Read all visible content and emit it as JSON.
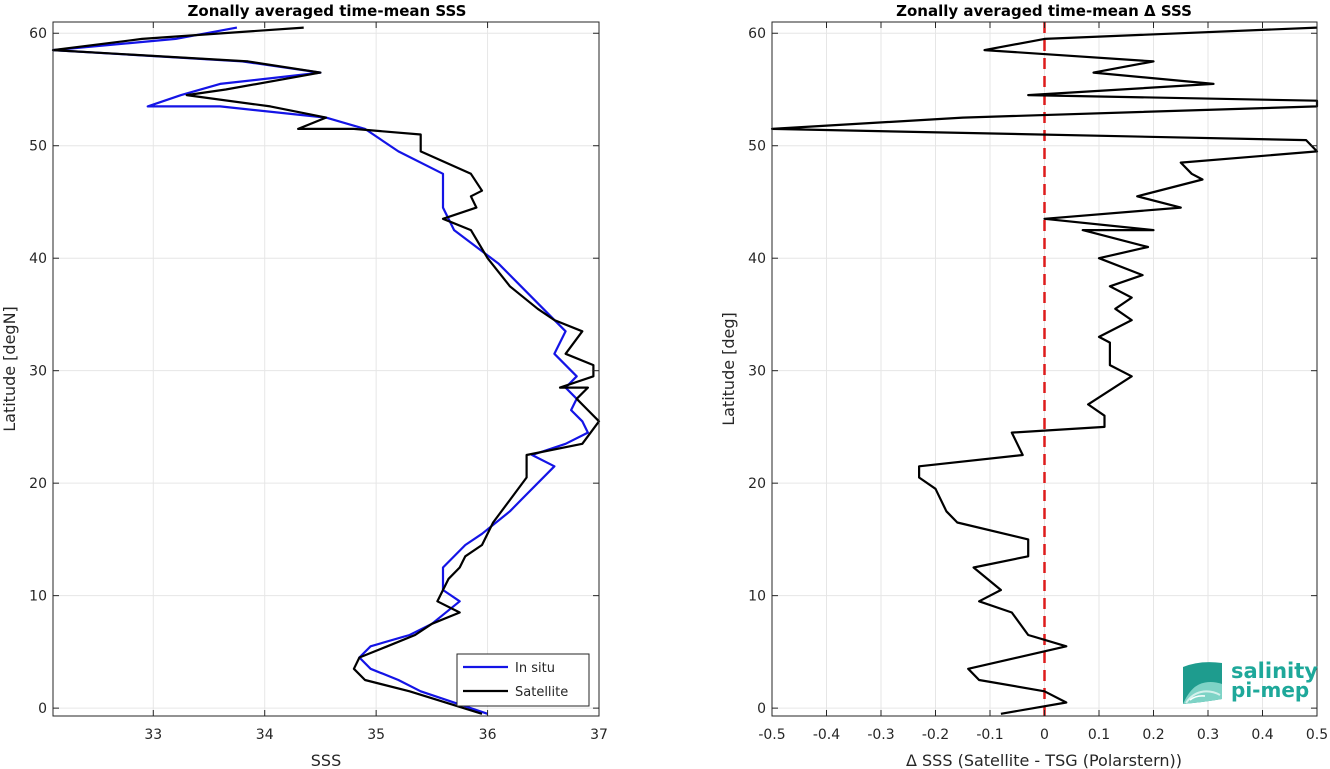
{
  "colors": {
    "in_situ": "#1414e6",
    "satellite": "#000000",
    "zero_line": "#dd1c1c",
    "logo_teal": "#1ea89a"
  },
  "logo": {
    "line1": "salinity",
    "line2": "pi-mep",
    "icon": "salinity-wave-logo-icon"
  },
  "chart_data": [
    {
      "type": "line",
      "title": "Zonally averaged time-mean SSS",
      "xlabel": "SSS",
      "ylabel": "Latitude [degN]",
      "xlim": [
        32.1,
        37
      ],
      "ylim": [
        -0.7,
        61
      ],
      "xticks": [
        "33",
        "34",
        "35",
        "36",
        "37"
      ],
      "yticks": [
        "0",
        "10",
        "20",
        "30",
        "40",
        "50",
        "60"
      ],
      "grid": true,
      "legend": {
        "placement": "bottom-right",
        "entries": [
          "In situ",
          "Satellite"
        ]
      },
      "series": [
        {
          "name": "In situ",
          "color_key": "in_situ",
          "points": [
            [
              36.0,
              -0.5
            ],
            [
              35.4,
              1.5
            ],
            [
              35.2,
              2.5
            ],
            [
              34.95,
              3.5
            ],
            [
              34.85,
              4.5
            ],
            [
              34.95,
              5.5
            ],
            [
              35.3,
              6.5
            ],
            [
              35.5,
              7.5
            ],
            [
              35.75,
              9.5
            ],
            [
              35.6,
              10.5
            ],
            [
              35.6,
              12.5
            ],
            [
              35.8,
              14.5
            ],
            [
              35.95,
              15.5
            ],
            [
              36.2,
              17.5
            ],
            [
              36.3,
              18.5
            ],
            [
              36.6,
              21.5
            ],
            [
              36.4,
              22.5
            ],
            [
              36.7,
              23.5
            ],
            [
              36.9,
              24.5
            ],
            [
              36.85,
              25.5
            ],
            [
              36.75,
              26.5
            ],
            [
              36.8,
              27.5
            ],
            [
              36.7,
              28.5
            ],
            [
              36.8,
              29.5
            ],
            [
              36.6,
              31.5
            ],
            [
              36.7,
              33.5
            ],
            [
              36.5,
              35.5
            ],
            [
              36.3,
              37.5
            ],
            [
              36.1,
              39.5
            ],
            [
              35.7,
              42.5
            ],
            [
              35.6,
              44.5
            ],
            [
              35.6,
              47.5
            ],
            [
              35.2,
              49.5
            ],
            [
              34.9,
              51.5
            ],
            [
              34.55,
              52.5
            ],
            [
              33.6,
              53.5
            ],
            [
              32.95,
              53.5
            ],
            [
              33.25,
              54.5
            ],
            [
              33.6,
              55.5
            ],
            [
              34.5,
              56.5
            ],
            [
              33.8,
              57.5
            ],
            [
              32.1,
              58.5
            ],
            [
              33.2,
              59.5
            ],
            [
              33.75,
              60.5
            ]
          ]
        },
        {
          "name": "Satellite",
          "color_key": "satellite",
          "points": [
            [
              35.95,
              -0.5
            ],
            [
              35.3,
              1.5
            ],
            [
              34.9,
              2.5
            ],
            [
              34.8,
              3.5
            ],
            [
              34.85,
              4.5
            ],
            [
              35.1,
              5.5
            ],
            [
              35.35,
              6.5
            ],
            [
              35.5,
              7.5
            ],
            [
              35.75,
              8.5
            ],
            [
              35.55,
              9.5
            ],
            [
              35.6,
              10.5
            ],
            [
              35.65,
              11.5
            ],
            [
              35.75,
              12.5
            ],
            [
              35.8,
              13.5
            ],
            [
              35.95,
              14.5
            ],
            [
              36.05,
              16.5
            ],
            [
              36.2,
              18.5
            ],
            [
              36.35,
              20.5
            ],
            [
              36.35,
              22.5
            ],
            [
              36.85,
              23.5
            ],
            [
              37.0,
              25.5
            ],
            [
              36.9,
              26.5
            ],
            [
              36.8,
              27.5
            ],
            [
              36.9,
              28.5
            ],
            [
              36.65,
              28.5
            ],
            [
              36.95,
              29.5
            ],
            [
              36.95,
              30.5
            ],
            [
              36.7,
              31.5
            ],
            [
              36.85,
              33.5
            ],
            [
              36.6,
              34.5
            ],
            [
              36.45,
              35.5
            ],
            [
              36.2,
              37.5
            ],
            [
              36.0,
              40.0
            ],
            [
              35.85,
              42.5
            ],
            [
              35.6,
              43.5
            ],
            [
              35.9,
              44.5
            ],
            [
              35.85,
              45.5
            ],
            [
              35.95,
              46.0
            ],
            [
              35.85,
              47.5
            ],
            [
              35.4,
              49.5
            ],
            [
              35.4,
              51.0
            ],
            [
              34.8,
              51.5
            ],
            [
              34.3,
              51.5
            ],
            [
              34.55,
              52.5
            ],
            [
              34.05,
              53.5
            ],
            [
              33.3,
              54.5
            ],
            [
              33.65,
              55.0
            ],
            [
              34.5,
              56.5
            ],
            [
              33.85,
              57.5
            ],
            [
              32.1,
              58.5
            ],
            [
              32.9,
              59.5
            ],
            [
              34.35,
              60.5
            ]
          ]
        }
      ]
    },
    {
      "type": "line",
      "title": "Zonally averaged time-mean Δ SSS",
      "xlabel": "Δ SSS (Satellite - TSG (Polarstern))",
      "ylabel": "Latitude [deg]",
      "xlim": [
        -0.5,
        0.5
      ],
      "ylim": [
        -0.7,
        61
      ],
      "xticks": [
        "-0.5",
        "-0.4",
        "-0.3",
        "-0.2",
        "-0.1",
        "0",
        "0.1",
        "0.2",
        "0.3",
        "0.4",
        "0.5"
      ],
      "yticks": [
        "0",
        "10",
        "20",
        "30",
        "40",
        "50",
        "60"
      ],
      "grid": true,
      "reference_line": {
        "x": 0,
        "style": "dashed",
        "color_key": "zero_line"
      },
      "series": [
        {
          "color_key": "satellite",
          "points": [
            [
              -0.08,
              -0.5
            ],
            [
              0.04,
              0.5
            ],
            [
              0.0,
              1.5
            ],
            [
              -0.12,
              2.5
            ],
            [
              -0.14,
              3.5
            ],
            [
              0.04,
              5.5
            ],
            [
              -0.03,
              6.5
            ],
            [
              -0.06,
              8.5
            ],
            [
              -0.12,
              9.5
            ],
            [
              -0.08,
              10.5
            ],
            [
              -0.13,
              12.5
            ],
            [
              -0.03,
              13.5
            ],
            [
              -0.03,
              15.0
            ],
            [
              -0.16,
              16.5
            ],
            [
              -0.18,
              17.5
            ],
            [
              -0.2,
              19.5
            ],
            [
              -0.23,
              20.5
            ],
            [
              -0.23,
              21.5
            ],
            [
              -0.04,
              22.5
            ],
            [
              -0.06,
              24.5
            ],
            [
              0.11,
              25.0
            ],
            [
              0.11,
              26.0
            ],
            [
              0.08,
              27.0
            ],
            [
              0.16,
              29.5
            ],
            [
              0.12,
              30.5
            ],
            [
              0.12,
              32.5
            ],
            [
              0.1,
              33.0
            ],
            [
              0.16,
              34.5
            ],
            [
              0.13,
              35.5
            ],
            [
              0.16,
              36.5
            ],
            [
              0.12,
              37.5
            ],
            [
              0.18,
              38.5
            ],
            [
              0.1,
              40.0
            ],
            [
              0.19,
              41.0
            ],
            [
              0.07,
              42.5
            ],
            [
              0.2,
              42.5
            ],
            [
              0.0,
              43.5
            ],
            [
              0.25,
              44.5
            ],
            [
              0.17,
              45.5
            ],
            [
              0.29,
              47.0
            ],
            [
              0.27,
              47.5
            ],
            [
              0.25,
              48.5
            ],
            [
              0.5,
              49.5
            ],
            [
              0.48,
              50.5
            ],
            [
              -0.5,
              51.5
            ],
            [
              -0.15,
              52.5
            ],
            [
              0.5,
              53.5
            ],
            [
              0.5,
              54.0
            ],
            [
              -0.03,
              54.5
            ],
            [
              0.31,
              55.5
            ],
            [
              0.09,
              56.5
            ],
            [
              0.2,
              57.5
            ],
            [
              -0.11,
              58.5
            ],
            [
              0.0,
              59.5
            ],
            [
              0.5,
              60.5
            ]
          ]
        }
      ]
    }
  ]
}
